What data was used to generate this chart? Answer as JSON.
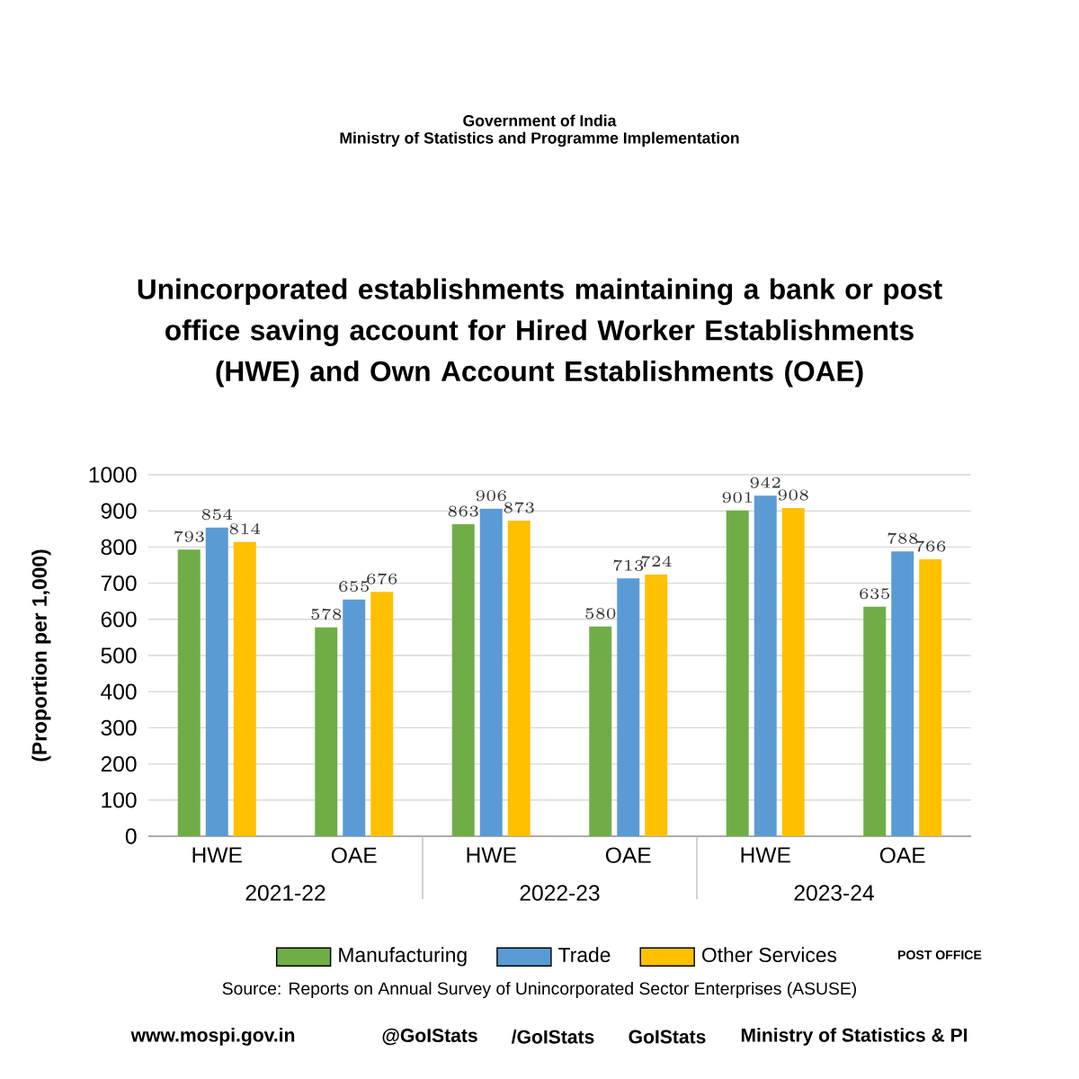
{
  "chart_data": {
    "type": "bar",
    "title": "Unincorporated establishments maintaining a bank or post office saving account for Hired Worker Establishments (HWE) and Own Account Establishments (OAE)",
    "ylabel": "(Proportion per 1,000)",
    "categories": [
      "HWE",
      "OAE",
      "HWE",
      "OAE",
      "HWE",
      "OAE"
    ],
    "series": [
      {
        "name": "Manufacturing",
        "color": "#70ad47",
        "values": [
          793,
          578,
          863,
          580,
          901,
          635
        ]
      },
      {
        "name": "Trade",
        "color": "#5b9bd5",
        "values": [
          854,
          655,
          906,
          713,
          942,
          788
        ]
      },
      {
        "name": "Other Services",
        "color": "#ffc000",
        "values": [
          814,
          676,
          873,
          724,
          908,
          766
        ]
      }
    ],
    "ylim": [
      0,
      1000
    ],
    "yticks": [
      0,
      100,
      200,
      300,
      400,
      500,
      600,
      700,
      800,
      900,
      1000
    ],
    "grid": "y",
    "legend": "bottom",
    "data_labels": true,
    "annotations": [
      "2021-22",
      "2022-23",
      "2023-24",
      "Government of India",
      "Ministry of Statistics and Programme Implementation",
      "Source: Reports on Annual Survey of Unincorporated Sector Enterprises (ASUSE)",
      "www.mospi.gov.in",
      "@GoIStats",
      "/GoIStats",
      "GoIStats",
      "Ministry of Statistics & PI",
      "POST OFFICE"
    ]
  }
}
